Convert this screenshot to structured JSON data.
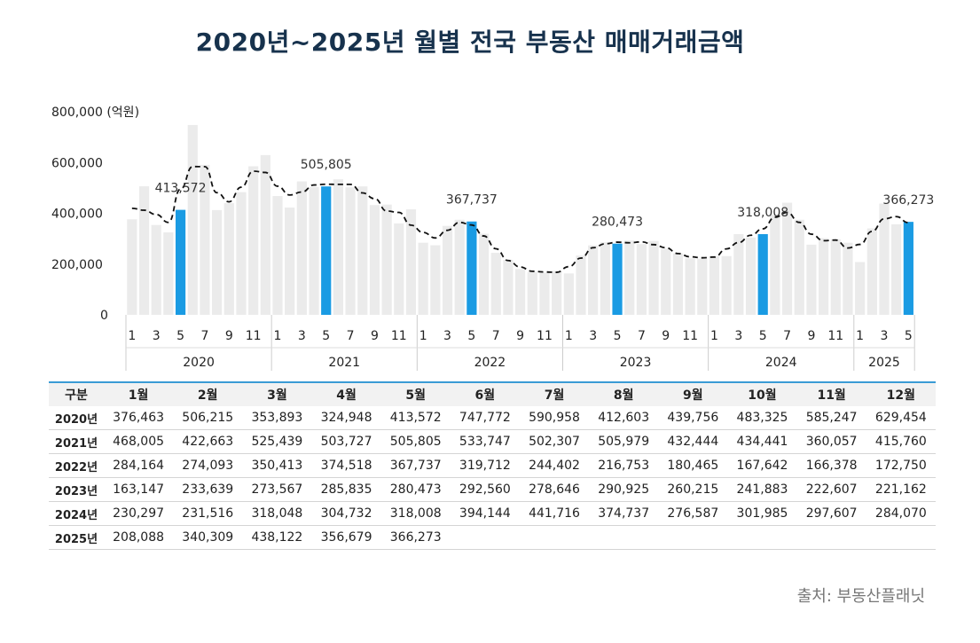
{
  "title": "2020년~2025년 월별 전국 부동산 매매거래금액",
  "source": "출처: 부동산플래닛",
  "colors": {
    "bar": "#ebebeb",
    "highlight": "#1a9be3",
    "trend": "#111111",
    "title": "#17324d",
    "table_rule": "#3a9bd5"
  },
  "chart_data": {
    "type": "bar",
    "ylabel": "800,000 (억원)",
    "ylim": [
      0,
      800000
    ],
    "yticks": [
      "0",
      "200,000",
      "400,000",
      "600,000"
    ],
    "x_tick_labels": [
      "1",
      "3",
      "5",
      "7",
      "9",
      "11"
    ],
    "x_tick_labels_2025": [
      "1",
      "3",
      "5"
    ],
    "highlight_month": 5,
    "years": [
      "2020",
      "2021",
      "2022",
      "2023",
      "2024",
      "2025"
    ],
    "series": [
      {
        "name": "2020",
        "values": [
          376463,
          506215,
          353893,
          324948,
          413572,
          747772,
          590958,
          412603,
          439756,
          483325,
          585247,
          629454
        ]
      },
      {
        "name": "2021",
        "values": [
          468005,
          422663,
          525439,
          503727,
          505805,
          533747,
          502307,
          505979,
          432444,
          434441,
          360057,
          415760
        ]
      },
      {
        "name": "2022",
        "values": [
          284164,
          274093,
          350413,
          374518,
          367737,
          319712,
          244402,
          216753,
          180465,
          167642,
          166378,
          172750
        ]
      },
      {
        "name": "2023",
        "values": [
          163147,
          233639,
          273567,
          285835,
          280473,
          292560,
          278646,
          290925,
          260215,
          241883,
          222607,
          221162
        ]
      },
      {
        "name": "2024",
        "values": [
          230297,
          231516,
          318048,
          304732,
          318008,
          394144,
          441716,
          374737,
          276587,
          301985,
          297607,
          284070
        ]
      },
      {
        "name": "2025",
        "values": [
          208088,
          340309,
          438122,
          356679,
          366273
        ]
      }
    ],
    "annotations": [
      "413,572",
      "505,805",
      "367,737",
      "280,473",
      "318,008",
      "366,273"
    ]
  },
  "table": {
    "headers": [
      "구분",
      "1월",
      "2월",
      "3월",
      "4월",
      "5월",
      "6월",
      "7월",
      "8월",
      "9월",
      "10월",
      "11월",
      "12월"
    ],
    "rows": [
      [
        "2020년",
        "376,463",
        "506,215",
        "353,893",
        "324,948",
        "413,572",
        "747,772",
        "590,958",
        "412,603",
        "439,756",
        "483,325",
        "585,247",
        "629,454"
      ],
      [
        "2021년",
        "468,005",
        "422,663",
        "525,439",
        "503,727",
        "505,805",
        "533,747",
        "502,307",
        "505,979",
        "432,444",
        "434,441",
        "360,057",
        "415,760"
      ],
      [
        "2022년",
        "284,164",
        "274,093",
        "350,413",
        "374,518",
        "367,737",
        "319,712",
        "244,402",
        "216,753",
        "180,465",
        "167,642",
        "166,378",
        "172,750"
      ],
      [
        "2023년",
        "163,147",
        "233,639",
        "273,567",
        "285,835",
        "280,473",
        "292,560",
        "278,646",
        "290,925",
        "260,215",
        "241,883",
        "222,607",
        "221,162"
      ],
      [
        "2024년",
        "230,297",
        "231,516",
        "318,048",
        "304,732",
        "318,008",
        "394,144",
        "441,716",
        "374,737",
        "276,587",
        "301,985",
        "297,607",
        "284,070"
      ],
      [
        "2025년",
        "208,088",
        "340,309",
        "438,122",
        "356,679",
        "366,273",
        "",
        "",
        "",
        "",
        "",
        "",
        ""
      ]
    ]
  }
}
